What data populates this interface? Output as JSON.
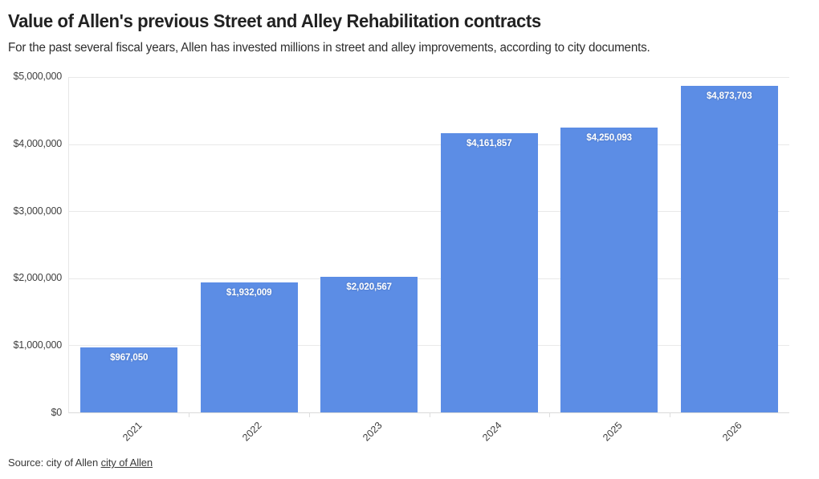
{
  "header": {
    "title": "Value of Allen's previous Street and Alley Rehabilitation contracts",
    "subtitle": "For the past several fiscal years, Allen has invested millions in street and alley improvements, according to city documents."
  },
  "chart_data": {
    "type": "bar",
    "title": "Value of Allen's previous Street and Alley Rehabilitation contracts",
    "categories": [
      "2021",
      "2022",
      "2023",
      "2024",
      "2025",
      "2026"
    ],
    "values": [
      967050,
      1932009,
      2020567,
      4161857,
      4250093,
      4873703
    ],
    "bar_labels": [
      "$967,050",
      "$1,932,009",
      "$2,020,567",
      "$4,161,857",
      "$4,250,093",
      "$4,873,703"
    ],
    "y_tick_labels": [
      "$5,000,000",
      "$4,000,000",
      "$3,000,000",
      "$2,000,000",
      "$1,000,000",
      "$0"
    ],
    "xlabel": "",
    "ylabel": "",
    "ylim": [
      0,
      5000000
    ],
    "grid": true,
    "legend": "none",
    "bar_color": "#5C8DE5",
    "bar_label_color": "#ffffff",
    "x_labels_rotated_degrees": -45
  },
  "footer": {
    "source_prefix": "Source: city of Allen",
    "source_link_label": "city of Allen"
  }
}
